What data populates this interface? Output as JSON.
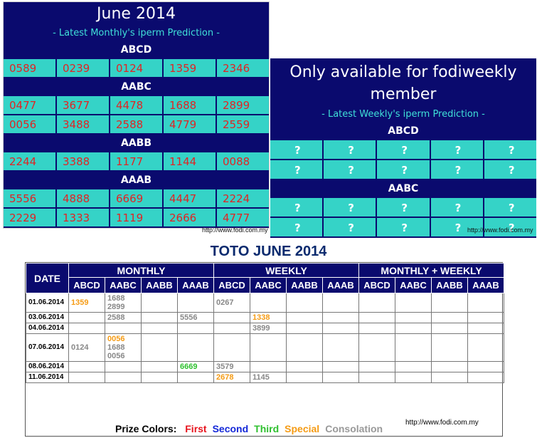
{
  "monthly": {
    "title": "June 2014",
    "subtitle": "- Latest Monthly's iperm Prediction -",
    "sections": [
      {
        "code": "ABCD",
        "rows": [
          [
            "0589",
            "0239",
            "0124",
            "1359",
            "2346"
          ]
        ]
      },
      {
        "code": "AABC",
        "rows": [
          [
            "0477",
            "3677",
            "4478",
            "1688",
            "2899"
          ],
          [
            "0056",
            "3488",
            "2588",
            "4779",
            "2559"
          ]
        ]
      },
      {
        "code": "AABB",
        "rows": [
          [
            "2244",
            "3388",
            "1177",
            "1144",
            "0088"
          ]
        ]
      },
      {
        "code": "AAAB",
        "rows": [
          [
            "5556",
            "4888",
            "6669",
            "4447",
            "2224"
          ],
          [
            "2229",
            "1333",
            "1119",
            "2666",
            "4777"
          ]
        ]
      }
    ],
    "watermark": "http://www.fodi.com.my"
  },
  "weekly": {
    "title_line1": "Only available for fodiweekly",
    "title_line2": "member",
    "subtitle": "- Latest Weekly's iperm Prediction -",
    "sections": [
      {
        "code": "ABCD",
        "rows": [
          [
            "?",
            "?",
            "?",
            "?",
            "?"
          ],
          [
            "?",
            "?",
            "?",
            "?",
            "?"
          ]
        ]
      },
      {
        "code": "AABC",
        "rows": [
          [
            "?",
            "?",
            "?",
            "?",
            "?"
          ],
          [
            "?",
            "?",
            "?",
            "?",
            "?"
          ]
        ]
      }
    ],
    "watermark": "http://www.fodi.com.my"
  },
  "toto": {
    "title": "TOTO JUNE 2014",
    "date_header": "DATE",
    "groups": [
      "MONTHLY",
      "WEEKLY",
      "MONTHLY + WEEKLY"
    ],
    "subheaders": [
      "ABCD",
      "AABC",
      "AABB",
      "AAAB",
      "ABCD",
      "AABC",
      "AABB",
      "AAAB",
      "ABCD",
      "AABC",
      "AABB",
      "AAAB"
    ],
    "rows": [
      {
        "date": "01.06.2014",
        "cells": [
          [
            {
              "v": "1359",
              "c": "special"
            }
          ],
          [
            {
              "v": "1688",
              "c": "consolation"
            },
            {
              "v": "2899",
              "c": "consolation"
            }
          ],
          [],
          [],
          [
            {
              "v": "0267",
              "c": "consolation"
            }
          ],
          [],
          [],
          [],
          [],
          [],
          [],
          []
        ]
      },
      {
        "date": "03.06.2014",
        "cells": [
          [],
          [
            {
              "v": "2588",
              "c": "consolation"
            }
          ],
          [],
          [
            {
              "v": "5556",
              "c": "consolation"
            }
          ],
          [],
          [
            {
              "v": "1338",
              "c": "special"
            }
          ],
          [],
          [],
          [],
          [],
          [],
          []
        ]
      },
      {
        "date": "04.06.2014",
        "cells": [
          [],
          [],
          [],
          [],
          [],
          [
            {
              "v": "3899",
              "c": "consolation"
            }
          ],
          [],
          [],
          [],
          [],
          [],
          []
        ]
      },
      {
        "date": "07.06.2014",
        "cells": [
          [
            {
              "v": "0124",
              "c": "consolation"
            }
          ],
          [
            {
              "v": "0056",
              "c": "special"
            },
            {
              "v": "1688",
              "c": "consolation"
            },
            {
              "v": "0056",
              "c": "consolation"
            }
          ],
          [],
          [],
          [],
          [],
          [],
          [],
          [],
          [],
          [],
          []
        ]
      },
      {
        "date": "08.06.2014",
        "cells": [
          [],
          [],
          [],
          [
            {
              "v": "6669",
              "c": "third"
            }
          ],
          [
            {
              "v": "3579",
              "c": "consolation"
            }
          ],
          [],
          [],
          [],
          [],
          [],
          [],
          []
        ]
      },
      {
        "date": "11.06.2014",
        "cells": [
          [],
          [],
          [],
          [],
          [
            {
              "v": "2678",
              "c": "special"
            }
          ],
          [
            {
              "v": "1145",
              "c": "consolation"
            }
          ],
          [],
          [],
          [],
          [],
          [],
          []
        ]
      }
    ],
    "url": "http://www.fodi.com.my"
  },
  "legend": {
    "label": "Prize Colors:",
    "items": [
      {
        "name": "First",
        "color": "#e8141e"
      },
      {
        "name": "Second",
        "color": "#1428d8"
      },
      {
        "name": "Third",
        "color": "#2ec02e"
      },
      {
        "name": "Special",
        "color": "#f59b14"
      },
      {
        "name": "Consolation",
        "color": "#999999"
      }
    ]
  },
  "colors": {
    "navy": "#0a0a6e",
    "teal": "#35d3c7",
    "red_number": "#e02424",
    "subtitle_cyan": "#3fe0d8",
    "consolation": "#888888"
  }
}
